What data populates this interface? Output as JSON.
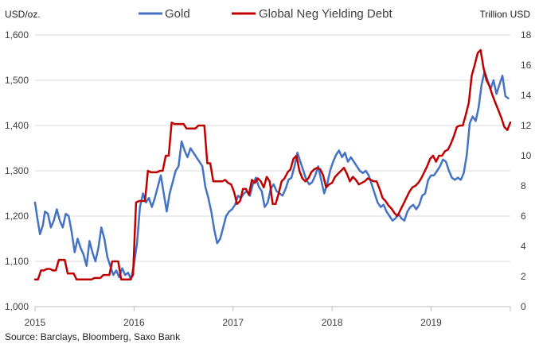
{
  "chart_data": {
    "type": "line",
    "title": "",
    "ylabel_left": "USD/oz.",
    "ylabel_right": "Trillion USD",
    "source": "Source: Barclays, Bloomberg, Saxo Bank",
    "x_ticks": [
      "2015",
      "2016",
      "2017",
      "2018",
      "2019"
    ],
    "y_left_ticks": [
      "1,000",
      "1,100",
      "1,200",
      "1,300",
      "1,400",
      "1,500",
      "1,600"
    ],
    "y_right_ticks": [
      "0",
      "2",
      "4",
      "6",
      "8",
      "10",
      "12",
      "14",
      "16",
      "18"
    ],
    "ylim_left": [
      1000,
      1600
    ],
    "ylim_right": [
      0,
      18
    ],
    "xlim": [
      2015.0,
      2019.8
    ],
    "grid": "horizontal",
    "legend_position": "top",
    "series": [
      {
        "name": "Gold",
        "axis": "left",
        "color": "#4472c4",
        "x": [
          2015.0,
          2015.02,
          2015.05,
          2015.08,
          2015.1,
          2015.13,
          2015.16,
          2015.19,
          2015.22,
          2015.25,
          2015.28,
          2015.31,
          2015.34,
          2015.37,
          2015.4,
          2015.43,
          2015.46,
          2015.49,
          2015.52,
          2015.55,
          2015.58,
          2015.61,
          2015.64,
          2015.67,
          2015.7,
          2015.73,
          2015.76,
          2015.79,
          2015.82,
          2015.85,
          2015.88,
          2015.91,
          2015.94,
          2015.97,
          2016.0,
          2016.03,
          2016.06,
          2016.09,
          2016.12,
          2016.15,
          2016.18,
          2016.21,
          2016.24,
          2016.27,
          2016.3,
          2016.33,
          2016.36,
          2016.39,
          2016.42,
          2016.45,
          2016.48,
          2016.51,
          2016.54,
          2016.57,
          2016.6,
          2016.63,
          2016.66,
          2016.69,
          2016.72,
          2016.75,
          2016.78,
          2016.81,
          2016.84,
          2016.87,
          2016.9,
          2016.93,
          2016.96,
          2016.99,
          2017.02,
          2017.05,
          2017.08,
          2017.11,
          2017.14,
          2017.17,
          2017.2,
          2017.23,
          2017.26,
          2017.29,
          2017.32,
          2017.35,
          2017.38,
          2017.41,
          2017.44,
          2017.47,
          2017.5,
          2017.53,
          2017.56,
          2017.59,
          2017.62,
          2017.65,
          2017.68,
          2017.71,
          2017.74,
          2017.77,
          2017.8,
          2017.83,
          2017.86,
          2017.89,
          2017.92,
          2017.95,
          2017.98,
          2018.01,
          2018.04,
          2018.07,
          2018.1,
          2018.13,
          2018.16,
          2018.19,
          2018.22,
          2018.25,
          2018.28,
          2018.31,
          2018.34,
          2018.37,
          2018.4,
          2018.43,
          2018.46,
          2018.49,
          2018.52,
          2018.55,
          2018.58,
          2018.61,
          2018.64,
          2018.67,
          2018.7,
          2018.73,
          2018.76,
          2018.79,
          2018.82,
          2018.85,
          2018.88,
          2018.91,
          2018.94,
          2018.97,
          2019.0,
          2019.03,
          2019.06,
          2019.09,
          2019.12,
          2019.15,
          2019.18,
          2019.21,
          2019.24,
          2019.27,
          2019.3,
          2019.33,
          2019.36,
          2019.39,
          2019.42,
          2019.45,
          2019.48,
          2019.51,
          2019.54,
          2019.57,
          2019.6,
          2019.63,
          2019.66,
          2019.69,
          2019.72,
          2019.75,
          2019.78
        ],
        "values": [
          1230,
          1200,
          1160,
          1180,
          1210,
          1205,
          1175,
          1190,
          1215,
          1190,
          1175,
          1205,
          1200,
          1165,
          1120,
          1150,
          1130,
          1115,
          1090,
          1145,
          1120,
          1100,
          1130,
          1175,
          1150,
          1110,
          1090,
          1070,
          1080,
          1065,
          1085,
          1070,
          1075,
          1060,
          1095,
          1140,
          1220,
          1250,
          1230,
          1240,
          1220,
          1240,
          1265,
          1290,
          1250,
          1210,
          1250,
          1275,
          1300,
          1310,
          1365,
          1345,
          1330,
          1350,
          1340,
          1330,
          1320,
          1310,
          1265,
          1240,
          1210,
          1170,
          1140,
          1150,
          1175,
          1200,
          1210,
          1215,
          1225,
          1245,
          1240,
          1250,
          1255,
          1245,
          1270,
          1285,
          1265,
          1255,
          1220,
          1230,
          1260,
          1270,
          1255,
          1250,
          1245,
          1260,
          1280,
          1285,
          1310,
          1340,
          1320,
          1300,
          1280,
          1270,
          1275,
          1290,
          1310,
          1280,
          1250,
          1270,
          1300,
          1320,
          1335,
          1345,
          1330,
          1340,
          1320,
          1330,
          1320,
          1310,
          1300,
          1295,
          1300,
          1290,
          1270,
          1250,
          1230,
          1220,
          1225,
          1210,
          1200,
          1190,
          1195,
          1205,
          1195,
          1190,
          1210,
          1220,
          1225,
          1215,
          1225,
          1245,
          1250,
          1280,
          1290,
          1290,
          1300,
          1310,
          1325,
          1320,
          1300,
          1285,
          1280,
          1285,
          1280,
          1295,
          1335,
          1405,
          1420,
          1410,
          1440,
          1490,
          1520,
          1500,
          1480,
          1500,
          1470,
          1490,
          1510,
          1465,
          1460
        ]
      },
      {
        "name": "Global Neg Yielding Debt",
        "axis": "right",
        "color": "#c00000",
        "x": [
          2015.0,
          2015.03,
          2015.06,
          2015.09,
          2015.12,
          2015.15,
          2015.18,
          2015.21,
          2015.24,
          2015.27,
          2015.3,
          2015.33,
          2015.36,
          2015.39,
          2015.42,
          2015.45,
          2015.48,
          2015.51,
          2015.54,
          2015.57,
          2015.6,
          2015.63,
          2015.66,
          2015.69,
          2015.72,
          2015.75,
          2015.78,
          2015.81,
          2015.84,
          2015.87,
          2015.9,
          2015.93,
          2015.96,
          2015.99,
          2016.02,
          2016.05,
          2016.08,
          2016.11,
          2016.14,
          2016.17,
          2016.2,
          2016.23,
          2016.26,
          2016.29,
          2016.32,
          2016.35,
          2016.38,
          2016.41,
          2016.44,
          2016.47,
          2016.5,
          2016.53,
          2016.56,
          2016.59,
          2016.62,
          2016.65,
          2016.68,
          2016.71,
          2016.74,
          2016.77,
          2016.8,
          2016.83,
          2016.86,
          2016.89,
          2016.92,
          2016.95,
          2016.98,
          2017.01,
          2017.04,
          2017.07,
          2017.1,
          2017.13,
          2017.16,
          2017.19,
          2017.22,
          2017.25,
          2017.28,
          2017.31,
          2017.34,
          2017.37,
          2017.4,
          2017.43,
          2017.46,
          2017.49,
          2017.52,
          2017.55,
          2017.58,
          2017.61,
          2017.64,
          2017.67,
          2017.7,
          2017.73,
          2017.76,
          2017.79,
          2017.82,
          2017.85,
          2017.88,
          2017.91,
          2017.94,
          2017.97,
          2018.0,
          2018.03,
          2018.06,
          2018.09,
          2018.12,
          2018.15,
          2018.18,
          2018.21,
          2018.24,
          2018.27,
          2018.3,
          2018.33,
          2018.36,
          2018.39,
          2018.42,
          2018.45,
          2018.48,
          2018.51,
          2018.54,
          2018.57,
          2018.6,
          2018.63,
          2018.66,
          2018.69,
          2018.72,
          2018.75,
          2018.78,
          2018.81,
          2018.84,
          2018.87,
          2018.9,
          2018.93,
          2018.96,
          2018.99,
          2019.02,
          2019.05,
          2019.08,
          2019.11,
          2019.14,
          2019.17,
          2019.2,
          2019.23,
          2019.26,
          2019.29,
          2019.32,
          2019.35,
          2019.38,
          2019.41,
          2019.44,
          2019.47,
          2019.5,
          2019.53,
          2019.56,
          2019.59,
          2019.62,
          2019.65,
          2019.68,
          2019.71,
          2019.74,
          2019.77,
          2019.8
        ],
        "values": [
          1.8,
          1.8,
          2.4,
          2.4,
          2.5,
          2.5,
          2.4,
          2.4,
          3.1,
          3.1,
          3.1,
          2.2,
          2.2,
          2.2,
          1.8,
          1.8,
          1.8,
          1.8,
          1.8,
          1.8,
          1.9,
          1.9,
          1.9,
          2.1,
          2.1,
          2.1,
          3.0,
          3.0,
          3.0,
          1.8,
          1.8,
          1.8,
          1.8,
          2.1,
          6.9,
          7.0,
          7.0,
          7.0,
          9.0,
          8.9,
          8.9,
          8.9,
          9.0,
          9.0,
          10.0,
          10.0,
          12.2,
          12.1,
          12.1,
          12.1,
          12.1,
          11.8,
          11.8,
          11.8,
          11.8,
          12.0,
          12.0,
          12.0,
          9.5,
          9.5,
          8.3,
          8.3,
          8.3,
          8.3,
          8.4,
          8.2,
          8.1,
          7.6,
          6.8,
          7.0,
          7.8,
          7.8,
          7.4,
          8.4,
          8.2,
          8.5,
          8.3,
          7.9,
          8.6,
          8.3,
          6.8,
          6.8,
          7.5,
          8.3,
          8.5,
          8.9,
          9.1,
          9.8,
          10.0,
          9.0,
          8.5,
          8.3,
          8.5,
          8.9,
          9.1,
          9.2,
          9.1,
          8.7,
          7.9,
          8.1,
          8.2,
          8.6,
          8.8,
          9.0,
          9.2,
          8.8,
          8.3,
          8.6,
          8.4,
          8.1,
          8.2,
          8.3,
          8.5,
          8.4,
          8.3,
          8.3,
          7.8,
          7.2,
          7.0,
          6.7,
          6.5,
          6.2,
          6.0,
          6.4,
          6.8,
          7.2,
          7.6,
          7.9,
          8.0,
          8.2,
          8.5,
          8.9,
          9.3,
          9.8,
          10.0,
          9.6,
          10.0,
          10.0,
          10.3,
          10.4,
          10.8,
          11.3,
          11.9,
          12.0,
          12.0,
          12.7,
          13.5,
          15.3,
          16.0,
          16.8,
          17.0,
          15.8,
          15.0,
          14.6,
          14.0,
          13.5,
          13.0,
          12.5,
          11.9,
          11.7,
          12.2
        ]
      }
    ]
  }
}
